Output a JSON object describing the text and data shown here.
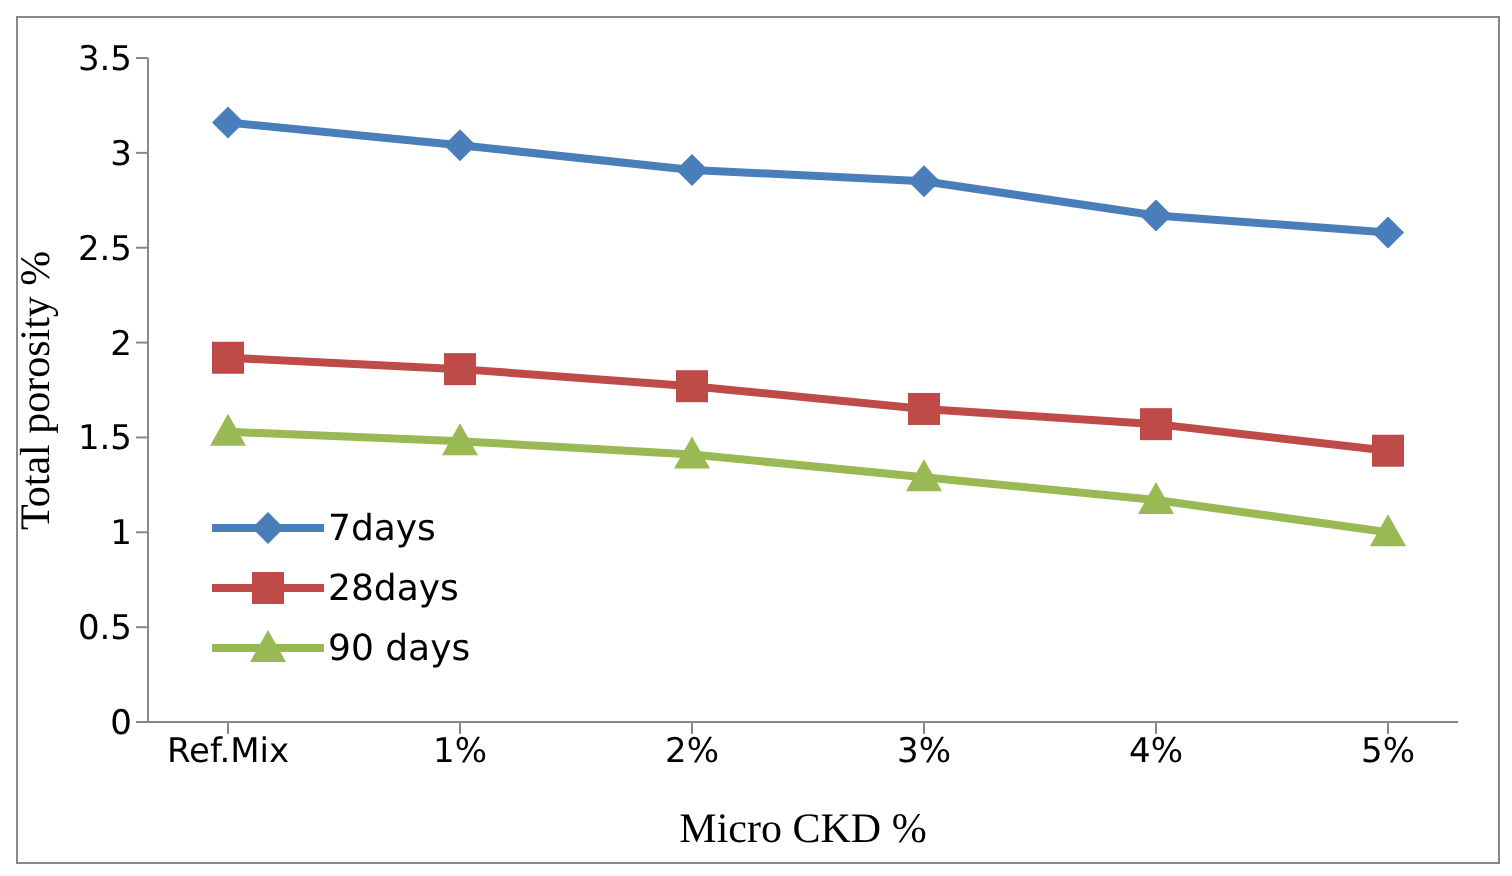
{
  "chart_data": {
    "type": "line",
    "xlabel": "Micro CKD %",
    "ylabel": "Total porosity %",
    "categories": [
      "Ref.Mix",
      "1%",
      "2%",
      "3%",
      "4%",
      "5%"
    ],
    "series": [
      {
        "name": "7days",
        "color": "#4a7ebb",
        "marker": "diamond",
        "values": [
          3.16,
          3.04,
          2.91,
          2.85,
          2.67,
          2.58
        ]
      },
      {
        "name": "28days",
        "color": "#be4b48",
        "marker": "square",
        "values": [
          1.92,
          1.86,
          1.77,
          1.65,
          1.57,
          1.43
        ]
      },
      {
        "name": "90 days",
        "color": "#98b954",
        "marker": "triangle",
        "values": [
          1.53,
          1.48,
          1.41,
          1.29,
          1.17,
          1.0
        ]
      }
    ],
    "ylim": [
      0,
      3.5
    ],
    "yticks": [
      0,
      0.5,
      1,
      1.5,
      2,
      2.5,
      3,
      3.5
    ],
    "grid": false,
    "legend": "left",
    "line_style": "solid"
  }
}
